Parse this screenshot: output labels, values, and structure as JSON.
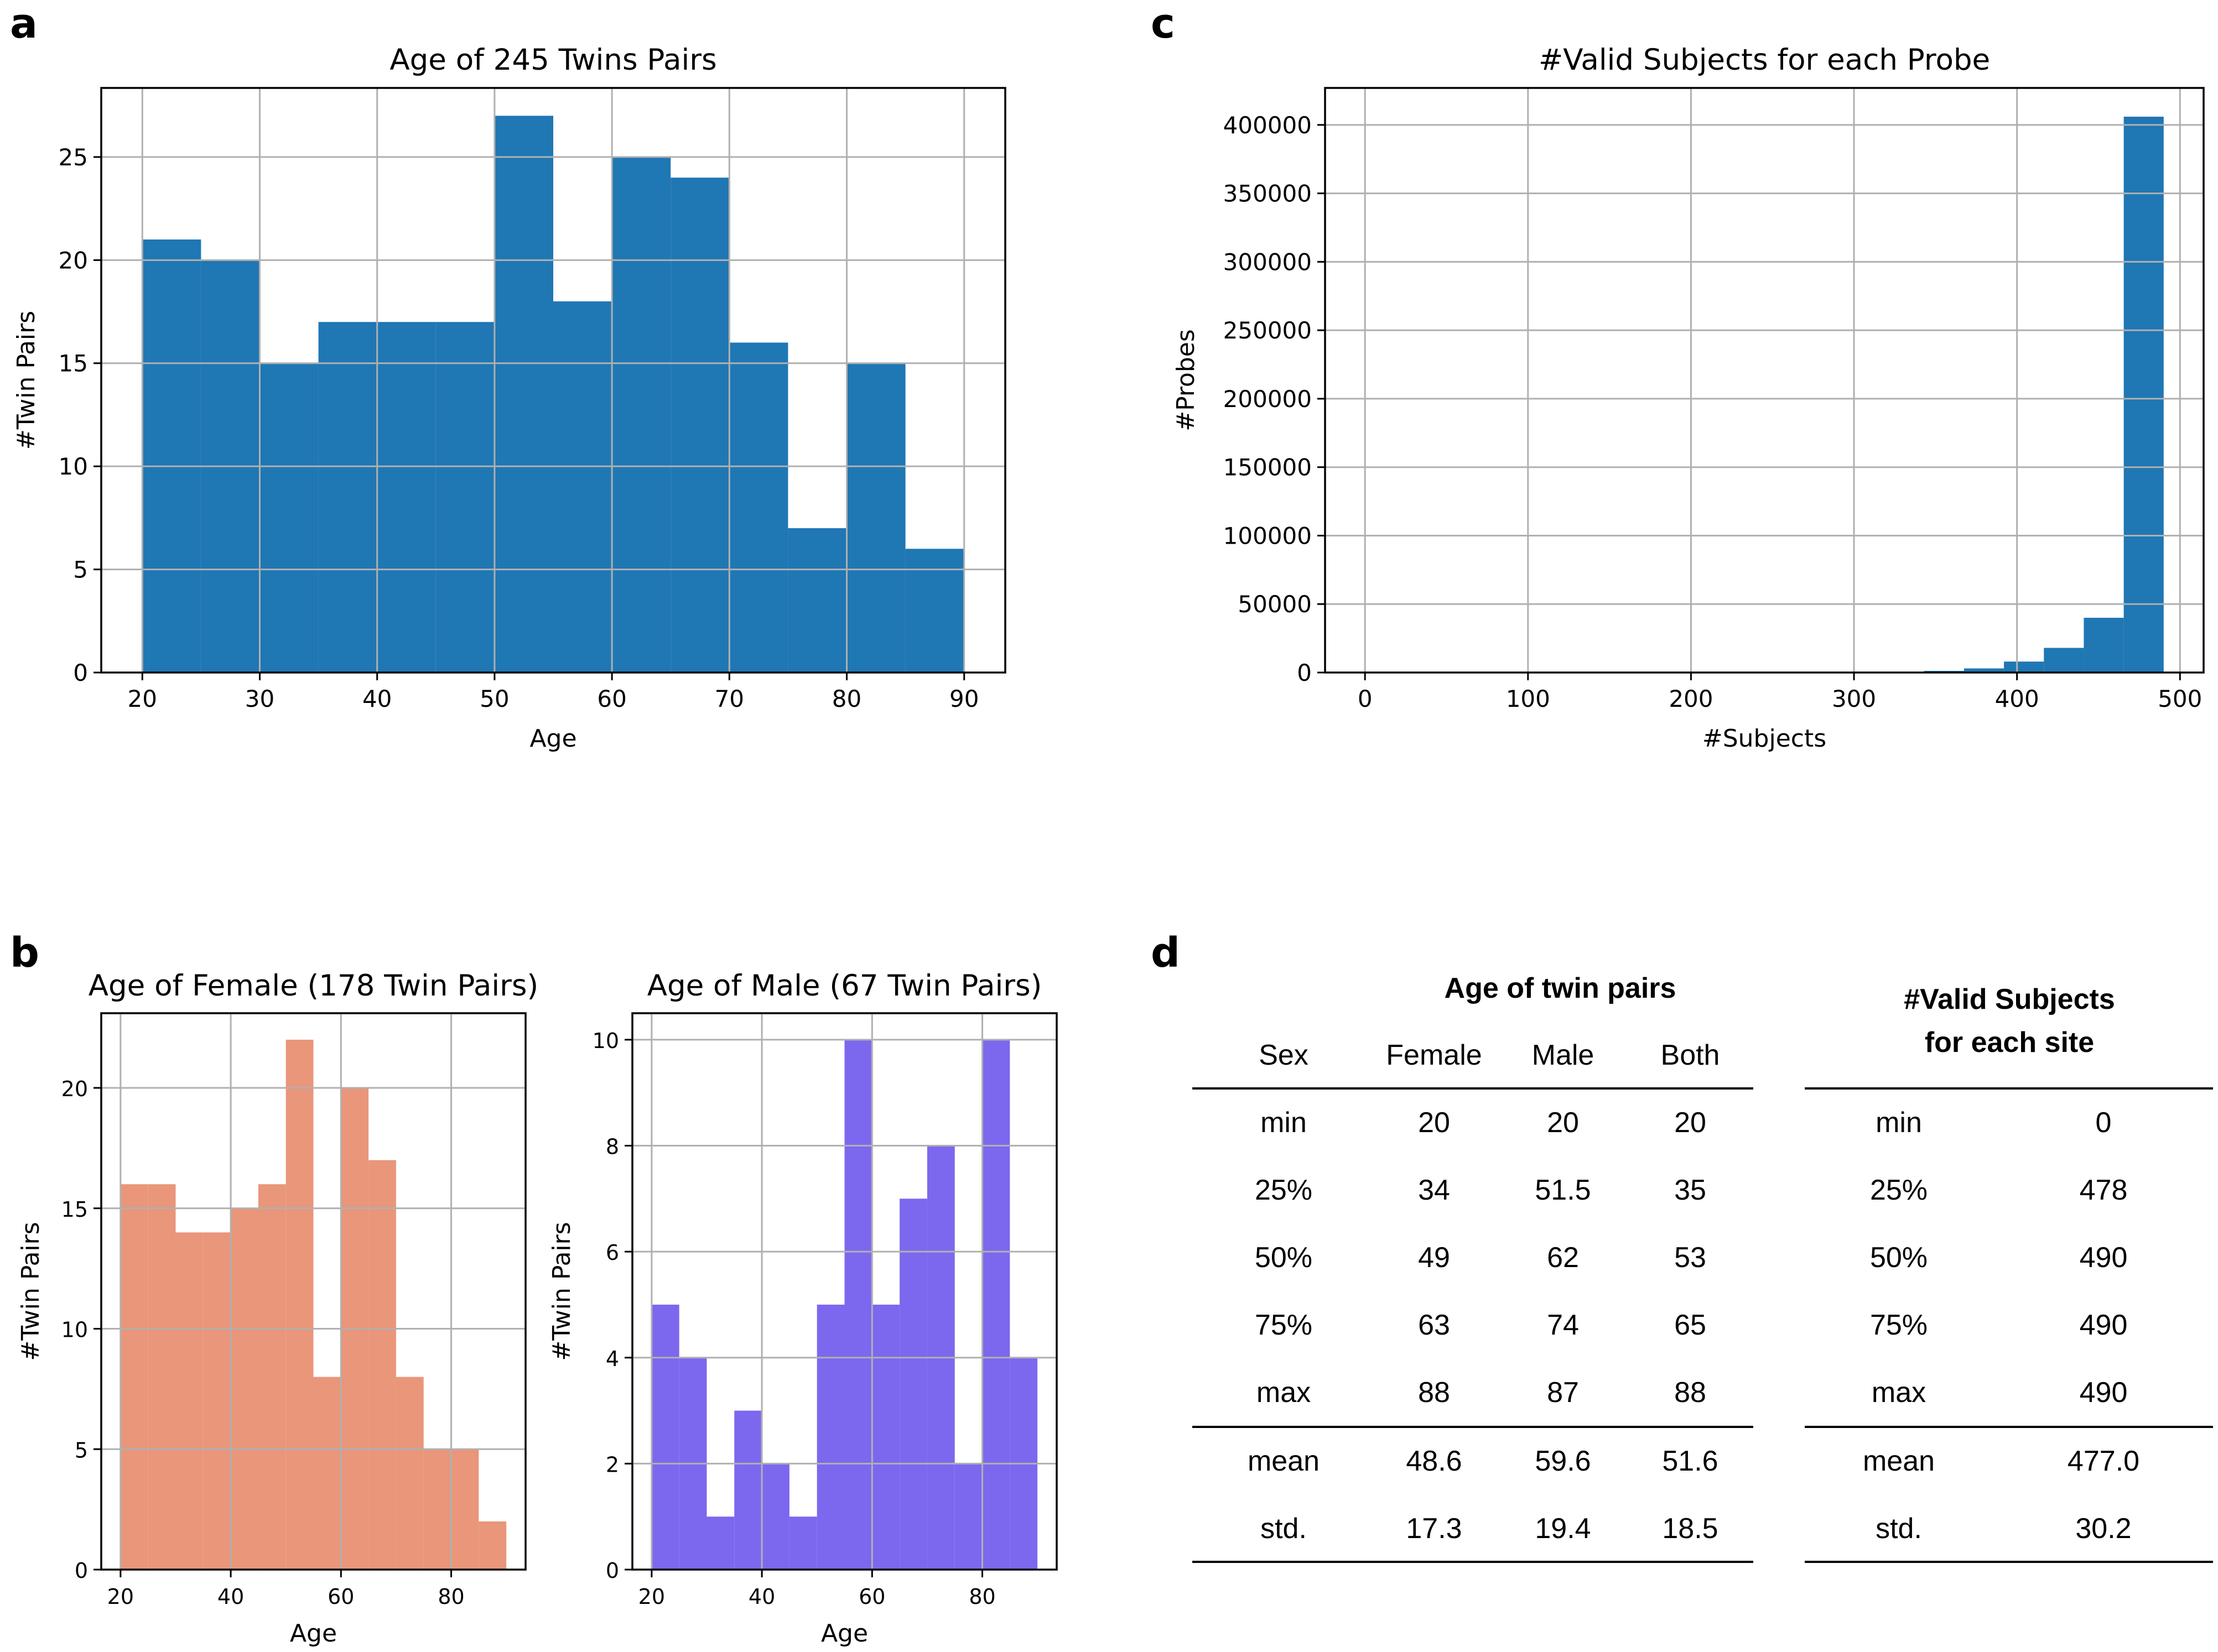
{
  "panel_letters": {
    "a": "a",
    "b": "b",
    "c": "c",
    "d": "d"
  },
  "chart_data": [
    {
      "id": "a",
      "type": "bar",
      "title": "Age of 245 Twins Pairs",
      "xlabel": "Age",
      "ylabel": "#Twin Pairs",
      "bin_edges": [
        20,
        25,
        30,
        35,
        40,
        45,
        50,
        55,
        60,
        65,
        70,
        75,
        80,
        85,
        90
      ],
      "values": [
        21,
        20,
        15,
        17,
        17,
        17,
        27,
        18,
        25,
        24,
        16,
        7,
        15,
        6
      ],
      "color": "#1f77b4",
      "xlim": [
        16.5,
        93.5
      ],
      "ylim": [
        0,
        28.35
      ],
      "xticks": [
        20,
        30,
        40,
        50,
        60,
        70,
        80,
        90
      ],
      "yticks": [
        0,
        5,
        10,
        15,
        20,
        25
      ],
      "grid": true
    },
    {
      "id": "c",
      "type": "bar",
      "title": "#Valid Subjects for each Probe",
      "xlabel": "#Subjects",
      "ylabel": "#Probes",
      "bin_edges": [
        0,
        24.5,
        49,
        73.5,
        98,
        122.5,
        147,
        171.5,
        196,
        220.5,
        245,
        269.5,
        294,
        318.5,
        343,
        367.5,
        392,
        416.5,
        441,
        465.5,
        490
      ],
      "values": [
        0,
        0,
        0,
        0,
        0,
        0,
        0,
        0,
        0,
        0,
        0,
        0,
        0,
        300,
        1200,
        3000,
        8000,
        18000,
        40000,
        406000
      ],
      "color": "#1f77b4",
      "xlim": [
        -24.5,
        514.5
      ],
      "ylim": [
        0,
        427000
      ],
      "xticks": [
        0,
        100,
        200,
        300,
        400,
        500
      ],
      "yticks": [
        0,
        50000,
        100000,
        150000,
        200000,
        250000,
        300000,
        350000,
        400000
      ],
      "grid": true
    },
    {
      "id": "b1",
      "type": "bar",
      "title": "Age of Female (178 Twin Pairs)",
      "xlabel": "Age",
      "ylabel": "#Twin Pairs",
      "bin_edges": [
        20,
        25,
        30,
        35,
        40,
        45,
        50,
        55,
        60,
        65,
        70,
        75,
        80,
        85,
        90
      ],
      "values": [
        16,
        16,
        14,
        14,
        15,
        16,
        22,
        8,
        20,
        17,
        8,
        5,
        5,
        2
      ],
      "color": "#e9967a",
      "xlim": [
        16.5,
        93.5
      ],
      "ylim": [
        0,
        23.1
      ],
      "xticks": [
        20,
        40,
        60,
        80
      ],
      "yticks": [
        0,
        5,
        10,
        15,
        20
      ],
      "grid": true
    },
    {
      "id": "b2",
      "type": "bar",
      "title": "Age of Male (67 Twin Pairs)",
      "xlabel": "Age",
      "ylabel": "#Twin Pairs",
      "bin_edges": [
        20,
        25,
        30,
        35,
        40,
        45,
        50,
        55,
        60,
        65,
        70,
        75,
        80,
        85,
        90
      ],
      "values": [
        5,
        4,
        1,
        3,
        2,
        1,
        5,
        10,
        5,
        7,
        8,
        2,
        10,
        4
      ],
      "color": "#7b68ee",
      "xlim": [
        16.5,
        93.5
      ],
      "ylim": [
        0,
        10.5
      ],
      "xticks": [
        20,
        40,
        60,
        80
      ],
      "yticks": [
        0,
        2,
        4,
        6,
        8,
        10
      ],
      "grid": true
    },
    {
      "id": "d",
      "type": "table",
      "left_title": "Age of twin pairs",
      "right_title_lines": [
        "#Valid Subjects",
        "for each site"
      ],
      "left_header": [
        "Sex",
        "Female",
        "Male",
        "Both"
      ],
      "rows": [
        {
          "stat": "min",
          "female": "20",
          "male": "20",
          "both": "20",
          "site": "0"
        },
        {
          "stat": "25%",
          "female": "34",
          "male": "51.5",
          "both": "35",
          "site": "478"
        },
        {
          "stat": "50%",
          "female": "49",
          "male": "62",
          "both": "53",
          "site": "490"
        },
        {
          "stat": "75%",
          "female": "63",
          "male": "74",
          "both": "65",
          "site": "490"
        },
        {
          "stat": "max",
          "female": "88",
          "male": "87",
          "both": "88",
          "site": "490"
        },
        {
          "stat": "mean",
          "female": "48.6",
          "male": "59.6",
          "both": "51.6",
          "site": "477.0"
        },
        {
          "stat": "std.",
          "female": "17.3",
          "male": "19.4",
          "both": "18.5",
          "site": "30.2"
        }
      ]
    }
  ]
}
